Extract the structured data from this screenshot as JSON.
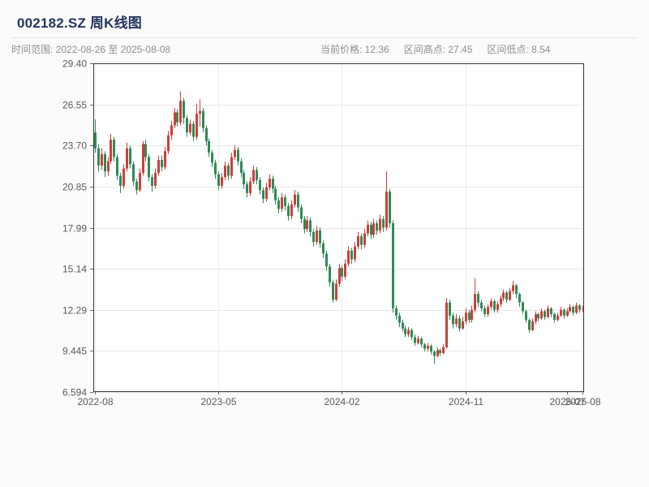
{
  "header": {
    "title": "002182.SZ 周K线图",
    "time_range_label": "时间范围: 2022-08-26 至 2025-08-08",
    "current_price_label": "当前价格: 12.36",
    "range_high_label": "区间高点: 27.45",
    "range_low_label": "区间低点: 8.54"
  },
  "chart_data": {
    "type": "candlestick",
    "title": "002182.SZ 周K线图",
    "symbol": "002182.SZ",
    "period": "weekly",
    "date_start": "2022-08-26",
    "date_end": "2025-08-08",
    "current_price": 12.36,
    "range_high": 27.45,
    "range_low": 8.54,
    "up_color": "#cc3f3a",
    "down_color": "#2e8b57",
    "grid": true,
    "ylim": [
      6.594,
      29.4
    ],
    "y_ticks": [
      {
        "label": "29.40",
        "value": 29.4
      },
      {
        "label": "26.55",
        "value": 26.55
      },
      {
        "label": "23.70",
        "value": 23.7
      },
      {
        "label": "20.85",
        "value": 20.85
      },
      {
        "label": "17.99",
        "value": 17.99
      },
      {
        "label": "15.14",
        "value": 15.14
      },
      {
        "label": "12.29",
        "value": 12.29
      },
      {
        "label": "9.445",
        "value": 9.445
      },
      {
        "label": "6.594",
        "value": 6.594
      }
    ],
    "x_ticks": [
      {
        "label": "2022-08",
        "week": 0,
        "grid": true
      },
      {
        "label": "2023-05",
        "week": 39,
        "grid": true
      },
      {
        "label": "2024-02",
        "week": 78,
        "grid": true
      },
      {
        "label": "2024-11",
        "week": 117,
        "grid": true
      },
      {
        "label": "2025-07",
        "week": 149,
        "grid": false
      },
      {
        "label": "2025-08",
        "week": 154,
        "grid": true
      }
    ],
    "ohlc_format": [
      "open",
      "high",
      "low",
      "close"
    ],
    "ohlc": [
      [
        24.6,
        25.5,
        23.2,
        23.5
      ],
      [
        23.5,
        23.8,
        21.9,
        22.3
      ],
      [
        22.3,
        23.5,
        22.0,
        23.1
      ],
      [
        23.1,
        23.3,
        21.5,
        21.9
      ],
      [
        21.9,
        22.9,
        21.6,
        22.6
      ],
      [
        22.6,
        24.5,
        22.4,
        24.1
      ],
      [
        24.1,
        24.3,
        22.6,
        22.9
      ],
      [
        22.9,
        23.1,
        21.3,
        21.6
      ],
      [
        21.6,
        21.8,
        20.4,
        20.9
      ],
      [
        20.9,
        22.4,
        20.7,
        22.1
      ],
      [
        22.1,
        23.9,
        21.9,
        23.5
      ],
      [
        23.5,
        23.7,
        22.1,
        22.4
      ],
      [
        22.4,
        22.6,
        20.9,
        21.2
      ],
      [
        21.2,
        21.4,
        20.3,
        20.6
      ],
      [
        20.6,
        22.1,
        20.5,
        21.8
      ],
      [
        21.8,
        24.0,
        21.6,
        23.8
      ],
      [
        23.8,
        24.1,
        22.6,
        22.9
      ],
      [
        22.9,
        23.1,
        21.2,
        21.5
      ],
      [
        21.5,
        21.7,
        20.5,
        20.9
      ],
      [
        20.9,
        22.1,
        20.7,
        21.8
      ],
      [
        21.8,
        23.0,
        21.6,
        22.7
      ],
      [
        22.7,
        23.0,
        21.9,
        22.2
      ],
      [
        22.2,
        23.6,
        22.0,
        23.3
      ],
      [
        23.3,
        24.7,
        23.1,
        24.4
      ],
      [
        24.4,
        25.4,
        24.1,
        25.1
      ],
      [
        25.1,
        26.3,
        24.9,
        26.0
      ],
      [
        26.0,
        26.2,
        25.0,
        25.3
      ],
      [
        25.3,
        27.45,
        25.1,
        26.8
      ],
      [
        26.8,
        27.0,
        25.2,
        25.6
      ],
      [
        25.6,
        25.8,
        24.3,
        24.6
      ],
      [
        24.6,
        25.5,
        24.4,
        25.2
      ],
      [
        25.2,
        25.4,
        24.0,
        24.3
      ],
      [
        24.3,
        26.6,
        24.1,
        25.9
      ],
      [
        25.9,
        26.9,
        25.0,
        26.1
      ],
      [
        26.1,
        26.3,
        24.6,
        24.9
      ],
      [
        24.9,
        25.1,
        23.7,
        24.0
      ],
      [
        24.0,
        24.2,
        22.9,
        23.2
      ],
      [
        23.2,
        23.4,
        22.2,
        22.5
      ],
      [
        22.5,
        22.7,
        21.4,
        21.7
      ],
      [
        21.7,
        21.9,
        20.6,
        20.9
      ],
      [
        20.9,
        21.8,
        20.7,
        21.5
      ],
      [
        21.5,
        22.6,
        21.3,
        22.3
      ],
      [
        22.3,
        22.5,
        21.3,
        21.6
      ],
      [
        21.6,
        23.2,
        21.4,
        22.9
      ],
      [
        22.9,
        23.7,
        22.7,
        23.4
      ],
      [
        23.4,
        23.6,
        22.3,
        22.6
      ],
      [
        22.6,
        22.8,
        21.5,
        21.8
      ],
      [
        21.8,
        22.0,
        20.7,
        21.0
      ],
      [
        21.0,
        21.2,
        20.1,
        20.4
      ],
      [
        20.4,
        21.5,
        20.2,
        21.2
      ],
      [
        21.2,
        22.3,
        21.0,
        22.0
      ],
      [
        22.0,
        22.2,
        21.0,
        21.3
      ],
      [
        21.3,
        21.5,
        20.3,
        20.6
      ],
      [
        20.6,
        20.8,
        19.7,
        20.0
      ],
      [
        20.0,
        21.1,
        19.8,
        20.8
      ],
      [
        20.8,
        21.7,
        20.6,
        21.4
      ],
      [
        21.4,
        21.6,
        20.4,
        20.7
      ],
      [
        20.7,
        20.9,
        19.6,
        19.9
      ],
      [
        19.9,
        20.1,
        19.0,
        19.3
      ],
      [
        19.3,
        20.4,
        19.1,
        20.1
      ],
      [
        20.1,
        20.3,
        19.2,
        19.5
      ],
      [
        19.5,
        19.7,
        18.5,
        18.8
      ],
      [
        18.8,
        19.9,
        18.6,
        19.6
      ],
      [
        19.6,
        20.6,
        19.4,
        20.3
      ],
      [
        20.3,
        20.5,
        19.1,
        19.4
      ],
      [
        19.4,
        19.6,
        18.3,
        18.6
      ],
      [
        18.6,
        18.8,
        17.6,
        17.9
      ],
      [
        17.9,
        18.8,
        17.7,
        18.5
      ],
      [
        18.5,
        18.7,
        17.4,
        17.7
      ],
      [
        17.7,
        17.9,
        16.7,
        17.0
      ],
      [
        17.0,
        18.1,
        16.8,
        17.8
      ],
      [
        17.8,
        18.0,
        16.6,
        16.9
      ],
      [
        16.9,
        17.1,
        15.9,
        16.2
      ],
      [
        16.2,
        16.4,
        15.0,
        15.3
      ],
      [
        15.3,
        15.5,
        13.9,
        14.2
      ],
      [
        14.2,
        14.4,
        12.8,
        13.0
      ],
      [
        13.0,
        14.4,
        12.9,
        14.1
      ],
      [
        14.1,
        15.5,
        13.9,
        15.2
      ],
      [
        15.2,
        15.4,
        14.3,
        14.6
      ],
      [
        14.6,
        15.8,
        14.4,
        15.5
      ],
      [
        15.5,
        16.7,
        15.3,
        16.4
      ],
      [
        16.4,
        16.6,
        15.5,
        15.8
      ],
      [
        15.8,
        17.0,
        15.6,
        16.7
      ],
      [
        16.7,
        17.7,
        16.5,
        17.4
      ],
      [
        17.4,
        17.6,
        16.5,
        16.8
      ],
      [
        16.8,
        17.9,
        16.6,
        17.6
      ],
      [
        17.6,
        18.5,
        17.4,
        18.2
      ],
      [
        18.2,
        18.4,
        17.2,
        17.5
      ],
      [
        17.5,
        18.6,
        17.3,
        18.3
      ],
      [
        18.3,
        18.5,
        17.5,
        17.8
      ],
      [
        17.8,
        18.9,
        17.6,
        18.6
      ],
      [
        18.6,
        18.8,
        17.7,
        18.0
      ],
      [
        18.0,
        21.9,
        17.8,
        20.5
      ],
      [
        20.5,
        20.7,
        18.0,
        18.3
      ],
      [
        18.3,
        18.5,
        12.1,
        12.4
      ],
      [
        12.4,
        12.6,
        11.6,
        11.9
      ],
      [
        11.9,
        12.1,
        11.1,
        11.4
      ],
      [
        11.4,
        11.6,
        10.8,
        11.0
      ],
      [
        11.0,
        11.2,
        10.4,
        10.6
      ],
      [
        10.6,
        11.1,
        10.4,
        10.9
      ],
      [
        10.9,
        11.0,
        10.2,
        10.4
      ],
      [
        10.4,
        10.6,
        9.8,
        10.0
      ],
      [
        10.0,
        10.5,
        9.9,
        10.3
      ],
      [
        10.3,
        10.4,
        9.7,
        9.9
      ],
      [
        9.9,
        10.0,
        9.4,
        9.6
      ],
      [
        9.6,
        10.0,
        9.4,
        9.8
      ],
      [
        9.8,
        9.9,
        9.2,
        9.4
      ],
      [
        9.4,
        9.5,
        8.54,
        9.1
      ],
      [
        9.1,
        9.7,
        9.0,
        9.5
      ],
      [
        9.5,
        9.6,
        9.1,
        9.3
      ],
      [
        9.3,
        9.9,
        9.2,
        9.7
      ],
      [
        9.7,
        13.1,
        9.6,
        12.8
      ],
      [
        12.8,
        13.0,
        11.6,
        11.9
      ],
      [
        11.9,
        12.1,
        11.0,
        11.3
      ],
      [
        11.3,
        12.0,
        11.1,
        11.7
      ],
      [
        11.7,
        11.9,
        10.8,
        11.0
      ],
      [
        11.0,
        11.8,
        10.9,
        11.5
      ],
      [
        11.5,
        12.4,
        11.3,
        12.1
      ],
      [
        12.1,
        12.3,
        11.4,
        11.6
      ],
      [
        11.6,
        12.6,
        11.4,
        12.3
      ],
      [
        12.3,
        14.5,
        12.1,
        13.4
      ],
      [
        13.4,
        13.6,
        12.5,
        12.8
      ],
      [
        12.8,
        13.0,
        12.2,
        12.4
      ],
      [
        12.4,
        12.6,
        11.8,
        12.0
      ],
      [
        12.0,
        12.7,
        11.8,
        12.5
      ],
      [
        12.5,
        13.1,
        12.3,
        12.9
      ],
      [
        12.9,
        13.0,
        12.1,
        12.3
      ],
      [
        12.3,
        12.9,
        12.1,
        12.7
      ],
      [
        12.7,
        13.3,
        12.5,
        13.1
      ],
      [
        13.1,
        13.7,
        12.9,
        13.5
      ],
      [
        13.5,
        13.6,
        12.8,
        13.0
      ],
      [
        13.0,
        13.8,
        12.9,
        13.6
      ],
      [
        13.6,
        14.3,
        13.4,
        14.0
      ],
      [
        14.0,
        14.1,
        13.1,
        13.4
      ],
      [
        13.4,
        13.5,
        12.5,
        12.8
      ],
      [
        12.8,
        12.9,
        12.0,
        12.2
      ],
      [
        12.2,
        12.3,
        11.4,
        11.6
      ],
      [
        11.6,
        11.7,
        10.7,
        10.9
      ],
      [
        10.9,
        11.7,
        10.8,
        11.5
      ],
      [
        11.5,
        12.2,
        11.3,
        12.0
      ],
      [
        12.0,
        12.1,
        11.5,
        11.7
      ],
      [
        11.7,
        12.4,
        11.6,
        12.2
      ],
      [
        12.2,
        12.3,
        11.6,
        11.8
      ],
      [
        11.8,
        12.6,
        11.7,
        12.4
      ],
      [
        12.4,
        12.5,
        11.8,
        12.0
      ],
      [
        12.0,
        12.1,
        11.4,
        11.6
      ],
      [
        11.6,
        12.1,
        11.5,
        11.9
      ],
      [
        11.9,
        12.5,
        11.8,
        12.3
      ],
      [
        12.3,
        12.4,
        11.7,
        11.9
      ],
      [
        11.9,
        12.4,
        11.8,
        12.2
      ],
      [
        12.2,
        12.7,
        12.1,
        12.5
      ],
      [
        12.5,
        12.6,
        11.9,
        12.1
      ],
      [
        12.1,
        12.8,
        12.0,
        12.6
      ],
      [
        12.6,
        12.7,
        12.1,
        12.3
      ],
      [
        12.3,
        12.6,
        12.15,
        12.36
      ]
    ]
  }
}
